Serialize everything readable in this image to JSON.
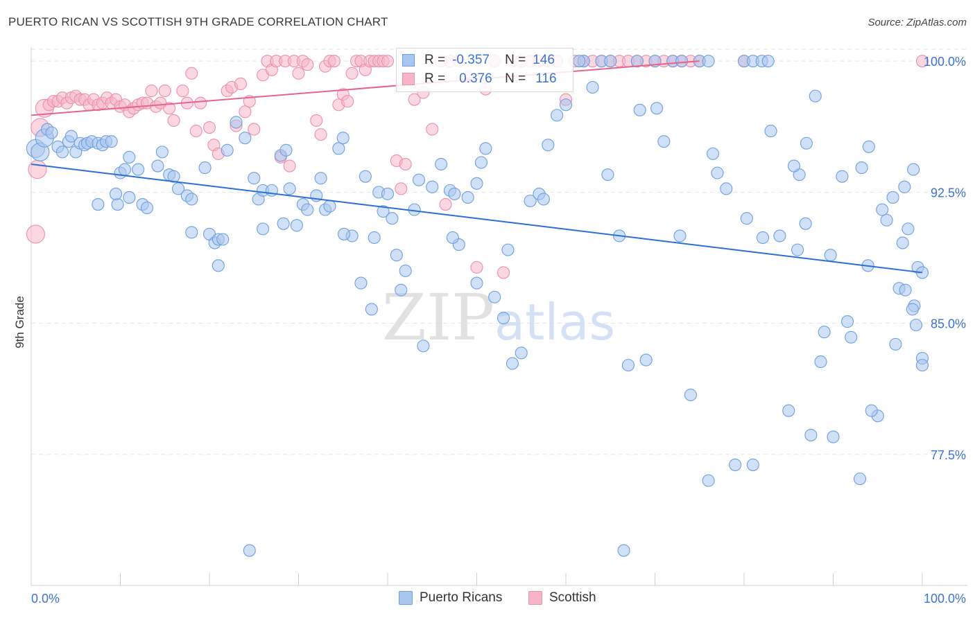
{
  "title": "PUERTO RICAN VS SCOTTISH 9TH GRADE CORRELATION CHART",
  "source": "Source: ZipAtlas.com",
  "watermark": {
    "zip": "ZIP",
    "atlas": "atlas"
  },
  "legend": {
    "row1": {
      "r_label": "R =",
      "r_value": "-0.357",
      "n_label": "N =",
      "n_value": "146"
    },
    "row2": {
      "r_label": "R =",
      "r_value": "0.376",
      "n_label": "N =",
      "n_value": "116"
    }
  },
  "bottom_legend": {
    "a": "Puerto Ricans",
    "b": "Scottish"
  },
  "colors": {
    "blue_fill": "#a9c6ef",
    "blue_stroke": "#6e9ee0",
    "blue_line": "#2a6fd6",
    "pink_fill": "#f6b6c8",
    "pink_stroke": "#ec8fab",
    "pink_line": "#e8628e",
    "tick_text": "#3b73d1",
    "grid": "#e4e4e4"
  },
  "chart_data": {
    "type": "scatter",
    "title": "PUERTO RICAN VS SCOTTISH 9TH GRADE CORRELATION CHART",
    "xlabel": "",
    "ylabel": "9th Grade",
    "xlim": [
      0,
      100
    ],
    "ylim": [
      70.0,
      100.8
    ],
    "x_tick_labels": [
      "0.0%",
      "100.0%"
    ],
    "y_ticks": [
      77.5,
      85.0,
      92.5,
      100.0
    ],
    "y_tick_labels": [
      "77.5%",
      "85.0%",
      "92.5%",
      "100.0%"
    ],
    "grid": true,
    "legend_position": "bottom-center",
    "series": [
      {
        "name": "Puerto Ricans",
        "R": -0.357,
        "N": 146,
        "trend": {
          "x": [
            0,
            100
          ],
          "y": [
            94.1,
            87.9
          ]
        },
        "points": [
          [
            0.5,
            95.0
          ],
          [
            1,
            94.8
          ],
          [
            1.5,
            95.6
          ],
          [
            1.8,
            96.1
          ],
          [
            2.3,
            95.9
          ],
          [
            3,
            95.1
          ],
          [
            3.5,
            94.8
          ],
          [
            4.2,
            95.4
          ],
          [
            4.5,
            95.7
          ],
          [
            5,
            94.8
          ],
          [
            5.5,
            95.3
          ],
          [
            6,
            95.2
          ],
          [
            6.3,
            95.3
          ],
          [
            6.8,
            95.4
          ],
          [
            7.5,
            95.3
          ],
          [
            8,
            95.2
          ],
          [
            8.4,
            95.4
          ],
          [
            9,
            95.4
          ],
          [
            10,
            93.6
          ],
          [
            10.5,
            93.8
          ],
          [
            11,
            94.5
          ],
          [
            12,
            93.8
          ],
          [
            7.5,
            91.8
          ],
          [
            9.7,
            91.8
          ],
          [
            9.5,
            92.4
          ],
          [
            11,
            92.2
          ],
          [
            12.5,
            91.8
          ],
          [
            13,
            91.6
          ],
          [
            14.2,
            94.0
          ],
          [
            14.7,
            94.8
          ],
          [
            15.5,
            93.5
          ],
          [
            16,
            93.4
          ],
          [
            16.5,
            92.7
          ],
          [
            17.5,
            92.3
          ],
          [
            18,
            92.1
          ],
          [
            19.5,
            93.9
          ],
          [
            20,
            90.1
          ],
          [
            20.6,
            89.6
          ],
          [
            21,
            89.8
          ],
          [
            21.5,
            89.8
          ],
          [
            18,
            90.2
          ],
          [
            22,
            94.9
          ],
          [
            23,
            96.5
          ],
          [
            24,
            95.6
          ],
          [
            25,
            93.3
          ],
          [
            25.5,
            92.1
          ],
          [
            26,
            92.6
          ],
          [
            27,
            92.6
          ],
          [
            26,
            90.4
          ],
          [
            28,
            94.6
          ],
          [
            28.6,
            94.9
          ],
          [
            28.3,
            90.7
          ],
          [
            29,
            92.7
          ],
          [
            29.8,
            90.6
          ],
          [
            30.5,
            91.8
          ],
          [
            31,
            91.5
          ],
          [
            32,
            92.3
          ],
          [
            32.5,
            93.3
          ],
          [
            33,
            91.5
          ],
          [
            33.5,
            91.7
          ],
          [
            34.5,
            95.0
          ],
          [
            35,
            95.6
          ],
          [
            36,
            90.0
          ],
          [
            37,
            87.3
          ],
          [
            37.5,
            93.4
          ],
          [
            38.2,
            85.8
          ],
          [
            38.5,
            89.9
          ],
          [
            39,
            92.5
          ],
          [
            39.5,
            91.4
          ],
          [
            40,
            92.4
          ],
          [
            40.5,
            91.0
          ],
          [
            41,
            88.9
          ],
          [
            41.5,
            86.9
          ],
          [
            42,
            88.0
          ],
          [
            43,
            91.5
          ],
          [
            43.5,
            93.2
          ],
          [
            44,
            83.7
          ],
          [
            45,
            92.8
          ],
          [
            46,
            94.1
          ],
          [
            47,
            92.6
          ],
          [
            47.5,
            92.4
          ],
          [
            48,
            89.5
          ],
          [
            49,
            92.2
          ],
          [
            50,
            87.3
          ],
          [
            50,
            93.0
          ],
          [
            50.5,
            94.2
          ],
          [
            51,
            95.0
          ],
          [
            52,
            86.5
          ],
          [
            53,
            85.3
          ],
          [
            53.5,
            89.2
          ],
          [
            54,
            82.7
          ],
          [
            55,
            83.3
          ],
          [
            56,
            92.0
          ],
          [
            57,
            92.4
          ],
          [
            57.5,
            92.1
          ],
          [
            59,
            96.9
          ],
          [
            60,
            97.5
          ],
          [
            62,
            100.0
          ],
          [
            63,
            98.5
          ],
          [
            64,
            100.0
          ],
          [
            65,
            100.0
          ],
          [
            66,
            90.0
          ],
          [
            67,
            82.6
          ],
          [
            68,
            100.0
          ],
          [
            69,
            82.9
          ],
          [
            70,
            100.0
          ],
          [
            71,
            95.4
          ],
          [
            72,
            100.0
          ],
          [
            73,
            100.0
          ],
          [
            74,
            80.9
          ],
          [
            75,
            100.0
          ],
          [
            76,
            100.0
          ],
          [
            77,
            93.6
          ],
          [
            78,
            92.7
          ],
          [
            79,
            76.9
          ],
          [
            80,
            100.0
          ],
          [
            81,
            100.0
          ],
          [
            82,
            100.0
          ],
          [
            83,
            96.0
          ],
          [
            84,
            90.0
          ],
          [
            85,
            80.0
          ],
          [
            86,
            89.2
          ],
          [
            87,
            95.3
          ],
          [
            88,
            98.0
          ],
          [
            89,
            84.5
          ],
          [
            90,
            78.5
          ],
          [
            91,
            93.4
          ],
          [
            92,
            84.2
          ],
          [
            93,
            76.1
          ],
          [
            94,
            95.1
          ],
          [
            95,
            79.7
          ],
          [
            96,
            90.9
          ],
          [
            97,
            83.8
          ],
          [
            98,
            92.8
          ],
          [
            99,
            93.8
          ],
          [
            100,
            83.0
          ],
          [
            70.2,
            97.3
          ],
          [
            82.1,
            89.9
          ],
          [
            86.2,
            93.5
          ],
          [
            88.6,
            82.8
          ],
          [
            93.2,
            93.9
          ],
          [
            95.5,
            91.5
          ],
          [
            96.7,
            92.2
          ],
          [
            97.8,
            89.6
          ],
          [
            98.4,
            90.4
          ],
          [
            99.1,
            86.0
          ],
          [
            99.5,
            88.2
          ],
          [
            47.3,
            89.9
          ],
          [
            35.1,
            90.1
          ],
          [
            58.0,
            95.2
          ],
          [
            61.5,
            100.0
          ],
          [
            64.7,
            93.5
          ],
          [
            68.3,
            97.2
          ],
          [
            72.8,
            90.0
          ],
          [
            76.5,
            94.7
          ],
          [
            80.3,
            91.0
          ],
          [
            82.7,
            100.0
          ],
          [
            85.6,
            94.0
          ],
          [
            86.9,
            90.7
          ],
          [
            89.7,
            88.9
          ],
          [
            91.6,
            85.1
          ],
          [
            93.9,
            88.3
          ],
          [
            97.4,
            87.0
          ],
          [
            98.1,
            86.9
          ],
          [
            98.9,
            85.8
          ],
          [
            99.3,
            84.9
          ],
          [
            100,
            87.9
          ],
          [
            100,
            82.6
          ],
          [
            24.5,
            72.0
          ],
          [
            21.0,
            88.3
          ],
          [
            66.5,
            72.0
          ],
          [
            76,
            76.0
          ],
          [
            81,
            76.9
          ],
          [
            87.5,
            78.6
          ],
          [
            94.3,
            80.0
          ]
        ]
      },
      {
        "name": "Scottish",
        "R": 0.376,
        "N": 116,
        "trend": {
          "x": [
            0,
            75
          ],
          "y": [
            96.9,
            100.0
          ]
        },
        "points": [
          [
            0.5,
            90.1
          ],
          [
            0.7,
            93.8
          ],
          [
            1,
            96.2
          ],
          [
            1.5,
            97.3
          ],
          [
            2,
            97.5
          ],
          [
            2.5,
            97.7
          ],
          [
            3,
            97.7
          ],
          [
            3.5,
            97.9
          ],
          [
            4,
            97.6
          ],
          [
            4.5,
            97.9
          ],
          [
            5,
            98.0
          ],
          [
            5.5,
            97.8
          ],
          [
            6,
            97.8
          ],
          [
            6.5,
            97.5
          ],
          [
            7,
            97.8
          ],
          [
            7.5,
            97.5
          ],
          [
            8,
            97.6
          ],
          [
            8.5,
            97.9
          ],
          [
            9,
            97.6
          ],
          [
            9.5,
            97.8
          ],
          [
            10,
            97.4
          ],
          [
            10.5,
            97.5
          ],
          [
            11,
            97.1
          ],
          [
            11.5,
            97.3
          ],
          [
            12,
            97.5
          ],
          [
            12.5,
            97.6
          ],
          [
            13,
            97.6
          ],
          [
            13.5,
            98.3
          ],
          [
            14,
            97.4
          ],
          [
            14.5,
            97.6
          ],
          [
            15,
            98.3
          ],
          [
            15.5,
            97.3
          ],
          [
            16,
            96.6
          ],
          [
            17,
            98.3
          ],
          [
            17.5,
            97.6
          ],
          [
            18,
            99.3
          ],
          [
            18.5,
            96.0
          ],
          [
            19,
            97.6
          ],
          [
            20,
            96.2
          ],
          [
            20.5,
            95.2
          ],
          [
            21,
            94.7
          ],
          [
            22,
            98.3
          ],
          [
            22.5,
            98.5
          ],
          [
            23,
            96.3
          ],
          [
            23.5,
            98.7
          ],
          [
            24,
            97.1
          ],
          [
            24.5,
            97.7
          ],
          [
            25,
            96.1
          ],
          [
            26,
            99.2
          ],
          [
            26.5,
            100.0
          ],
          [
            27,
            99.5
          ],
          [
            27.5,
            100.0
          ],
          [
            28,
            94.5
          ],
          [
            28.5,
            100.0
          ],
          [
            29,
            94.0
          ],
          [
            29.5,
            100.0
          ],
          [
            30,
            99.3
          ],
          [
            30.5,
            100.0
          ],
          [
            31,
            99.8
          ],
          [
            32,
            96.6
          ],
          [
            32.5,
            95.8
          ],
          [
            33,
            99.7
          ],
          [
            33.5,
            100.0
          ],
          [
            34,
            100.0
          ],
          [
            34.5,
            97.5
          ],
          [
            35,
            98.1
          ],
          [
            35.5,
            97.7
          ],
          [
            36,
            99.3
          ],
          [
            36.5,
            100.0
          ],
          [
            37,
            100.0
          ],
          [
            37.5,
            99.5
          ],
          [
            38,
            100.0
          ],
          [
            38.5,
            100.0
          ],
          [
            39,
            100.0
          ],
          [
            39.5,
            100.0
          ],
          [
            40,
            100.0
          ],
          [
            41,
            94.3
          ],
          [
            42,
            94.1
          ],
          [
            43,
            97.8
          ],
          [
            44,
            98.2
          ],
          [
            45,
            96.1
          ],
          [
            46,
            100.0
          ],
          [
            47,
            100.0
          ],
          [
            48,
            100.0
          ],
          [
            49,
            99.1
          ],
          [
            50,
            88.2
          ],
          [
            51,
            98.4
          ],
          [
            52,
            100.0
          ],
          [
            53,
            87.9
          ],
          [
            54,
            100.0
          ],
          [
            55,
            100.0
          ],
          [
            56,
            100.0
          ],
          [
            57,
            100.0
          ],
          [
            58,
            100.0
          ],
          [
            59,
            100.0
          ],
          [
            60,
            97.8
          ],
          [
            61,
            100.0
          ],
          [
            62,
            100.0
          ],
          [
            63,
            100.0
          ],
          [
            64,
            100.0
          ],
          [
            65,
            100.0
          ],
          [
            66,
            100.0
          ],
          [
            67,
            100.0
          ],
          [
            68,
            100.0
          ],
          [
            69,
            100.0
          ],
          [
            70,
            100.0
          ],
          [
            71,
            100.0
          ],
          [
            72,
            100.0
          ],
          [
            73,
            100.0
          ],
          [
            74,
            100.0
          ],
          [
            75,
            100.0
          ],
          [
            80,
            100.0
          ],
          [
            100,
            100.0
          ],
          [
            46.5,
            91.8
          ],
          [
            41.5,
            92.7
          ]
        ]
      }
    ]
  }
}
